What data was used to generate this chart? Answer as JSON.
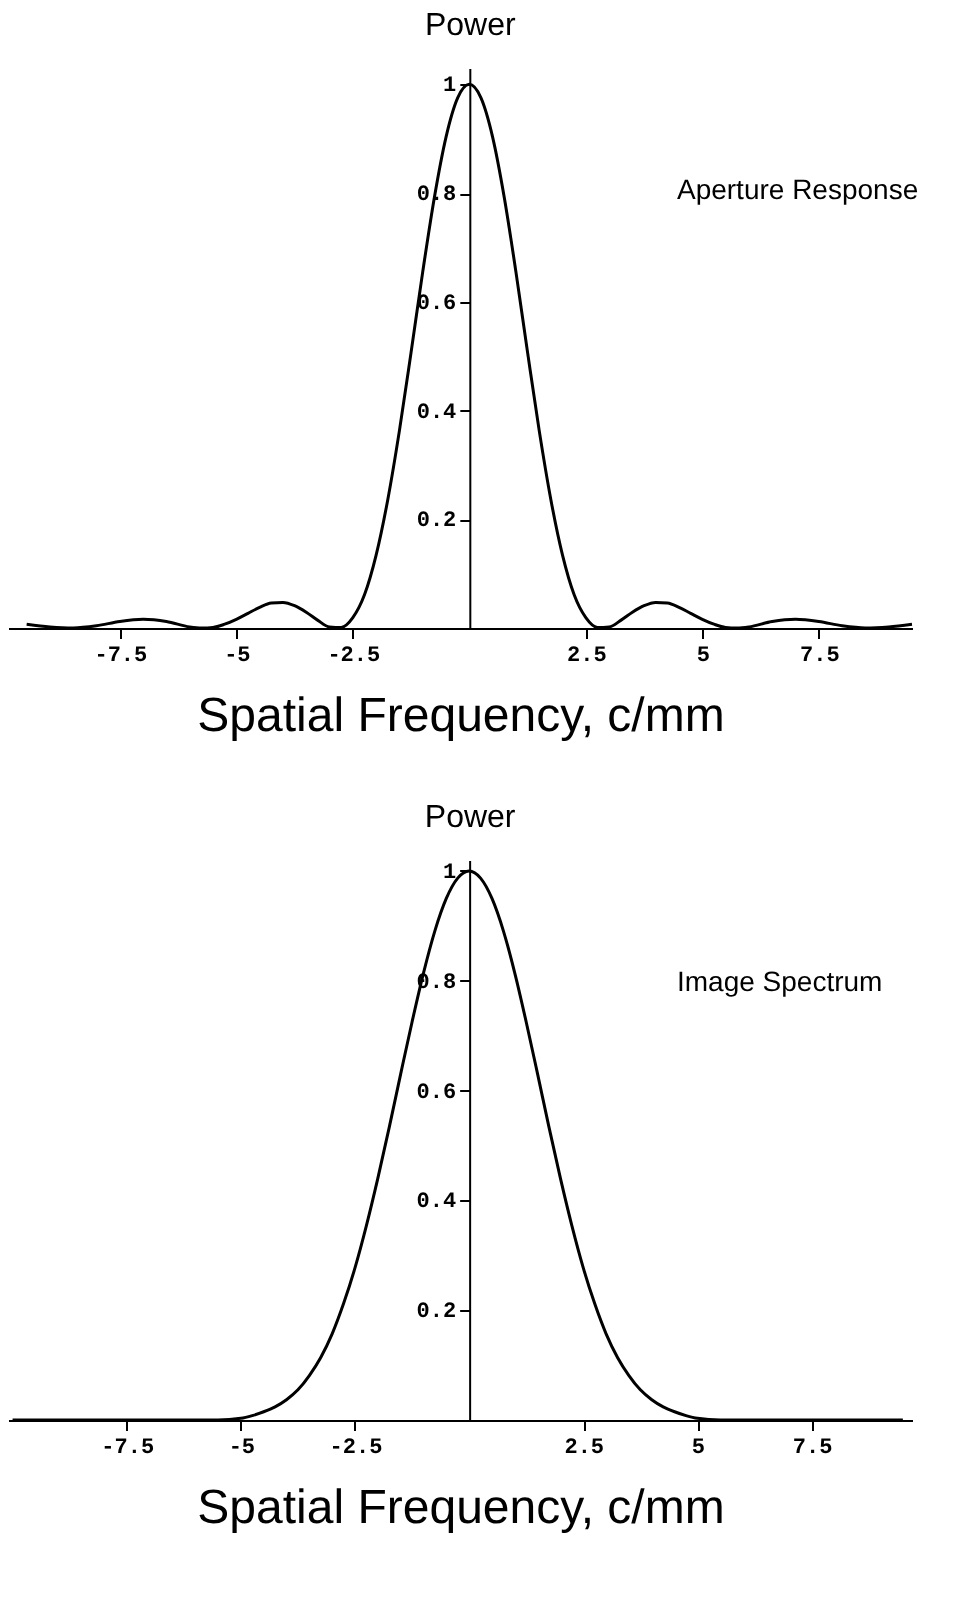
{
  "chart_data": [
    {
      "type": "line",
      "ylabel": "Power",
      "xlabel": "Spatial Frequency, c/mm",
      "annotations": [
        "Aperture Response"
      ],
      "xlim": [
        -9.9,
        9.5
      ],
      "ylim": [
        0,
        1.03
      ],
      "xticks": [
        -7.5,
        -5,
        -2.5,
        2.5,
        5,
        7.5
      ],
      "yticks": [
        0.2,
        0.4,
        0.6,
        0.8,
        1
      ],
      "x": [
        -9.5,
        -9,
        -8.5,
        -8,
        -7.5,
        -7,
        -6.5,
        -6,
        -5.75,
        -5.5,
        -5.25,
        -5,
        -4.75,
        -4.5,
        -4.25,
        -4,
        -3.75,
        -3.5,
        -3.25,
        -3,
        -2.75,
        -2.5,
        -2.25,
        -2,
        -1.75,
        -1.5,
        -1.25,
        -1,
        -0.75,
        -0.5,
        -0.25,
        0,
        0.25,
        0.5,
        0.75,
        1,
        1.25,
        1.5,
        1.75,
        2,
        2.25,
        2.5,
        2.75,
        3,
        3.25,
        3.5,
        3.75,
        4,
        4.25,
        4.5,
        4.75,
        5,
        5.25,
        5.5,
        5.75,
        6,
        6.5,
        7,
        7.5,
        8,
        8.5,
        9,
        9.5
      ],
      "series": [
        {
          "color": "#000000",
          "values": [
            0.007,
            0.002,
            0,
            0.004,
            0.012,
            0.016,
            0.012,
            0.002,
            0,
            0.001,
            0.007,
            0.016,
            0.027,
            0.038,
            0.046,
            0.047,
            0.041,
            0.029,
            0.014,
            0.002,
            0.001,
            0.019,
            0.061,
            0.134,
            0.236,
            0.363,
            0.507,
            0.655,
            0.792,
            0.903,
            0.975,
            1,
            0.975,
            0.903,
            0.792,
            0.655,
            0.507,
            0.363,
            0.236,
            0.134,
            0.061,
            0.019,
            0.001,
            0.002,
            0.014,
            0.029,
            0.041,
            0.047,
            0.046,
            0.038,
            0.027,
            0.016,
            0.007,
            0.001,
            0,
            0.002,
            0.012,
            0.016,
            0.012,
            0.004,
            0,
            0.002,
            0.007
          ]
        }
      ]
    },
    {
      "type": "line",
      "ylabel": "Power",
      "xlabel": "Spatial Frequency, c/mm",
      "annotations": [
        "Image Spectrum"
      ],
      "xlim": [
        -10.1,
        9.7
      ],
      "ylim": [
        0,
        1.02
      ],
      "xticks": [
        -7.5,
        -5,
        -2.5,
        2.5,
        5,
        7.5
      ],
      "yticks": [
        0.2,
        0.4,
        0.6,
        0.8,
        1
      ],
      "x": [
        -10,
        -8,
        -6.5,
        -5.5,
        -5,
        -4.75,
        -4.5,
        -4.25,
        -4,
        -3.75,
        -3.5,
        -3.25,
        -3,
        -2.75,
        -2.5,
        -2.25,
        -2,
        -1.75,
        -1.5,
        -1.25,
        -1,
        -0.75,
        -0.5,
        -0.25,
        0,
        0.25,
        0.5,
        0.75,
        1,
        1.25,
        1.5,
        1.75,
        2,
        2.25,
        2.5,
        2.75,
        3,
        3.25,
        3.5,
        3.75,
        4,
        4.25,
        4.5,
        4.75,
        5,
        5.5,
        6.5,
        8,
        9.5
      ],
      "series": [
        {
          "color": "#000000",
          "values": [
            0,
            0,
            0,
            0,
            0.003,
            0.008,
            0.015,
            0.024,
            0.037,
            0.055,
            0.081,
            0.114,
            0.157,
            0.212,
            0.277,
            0.354,
            0.44,
            0.533,
            0.63,
            0.725,
            0.814,
            0.891,
            0.95,
            0.987,
            1,
            0.987,
            0.95,
            0.891,
            0.814,
            0.725,
            0.63,
            0.533,
            0.44,
            0.354,
            0.277,
            0.212,
            0.157,
            0.114,
            0.081,
            0.055,
            0.037,
            0.024,
            0.015,
            0.008,
            0.003,
            0,
            0,
            0,
            0
          ]
        }
      ]
    }
  ]
}
